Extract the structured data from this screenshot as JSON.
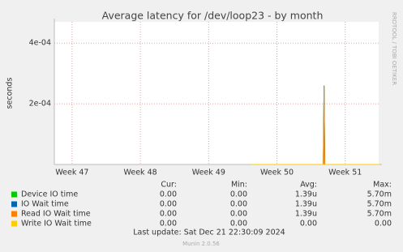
{
  "chart_data": {
    "type": "line",
    "title": "Average latency for /dev/loop23 - by month",
    "y_label": "seconds",
    "side_note": "RRDTOOL / TOBI OETIKER",
    "x": [
      49.62,
      50.68,
      50.69,
      50.7,
      51.49
    ],
    "xlim": [
      46.74,
      51.49
    ],
    "xticks": [
      {
        "value": 47,
        "label": "Week 47"
      },
      {
        "value": 48,
        "label": "Week 48"
      },
      {
        "value": 49,
        "label": "Week 49"
      },
      {
        "value": 50,
        "label": "Week 50"
      },
      {
        "value": 51,
        "label": "Week 51"
      }
    ],
    "ylim": [
      0,
      0.00047
    ],
    "yticks": [
      {
        "value": 0.0002,
        "label": "2e-04"
      },
      {
        "value": 0.0004,
        "label": "4e-04"
      }
    ],
    "grid": true,
    "series": [
      {
        "name": "Device IO time",
        "color": "#00cc00",
        "values": [
          0,
          0,
          0.00026,
          0,
          0
        ],
        "cur": "0.00",
        "min": "0.00",
        "avg": "1.39u",
        "max": "5.70m"
      },
      {
        "name": "IO Wait time",
        "color": "#0066b3",
        "values": [
          0,
          0,
          0.00026,
          0,
          0
        ],
        "cur": "0.00",
        "min": "0.00",
        "avg": "1.39u",
        "max": "5.70m"
      },
      {
        "name": "Read IO Wait time",
        "color": "#ff8000",
        "values": [
          0,
          0,
          0.00026,
          0,
          0
        ],
        "cur": "0.00",
        "min": "0.00",
        "avg": "1.39u",
        "max": "5.70m"
      },
      {
        "name": "Write IO Wait time",
        "color": "#ffcc00",
        "values": [
          0,
          0,
          0,
          0,
          0
        ],
        "cur": "0.00",
        "min": "0.00",
        "avg": "0.00",
        "max": "0.00"
      }
    ],
    "legend_headers": [
      "Cur:",
      "Min:",
      "Avg:",
      "Max:"
    ],
    "last_update": "Last update: Sat Dec 21 22:30:09 2024",
    "footer": "Munin 2.0.56"
  }
}
